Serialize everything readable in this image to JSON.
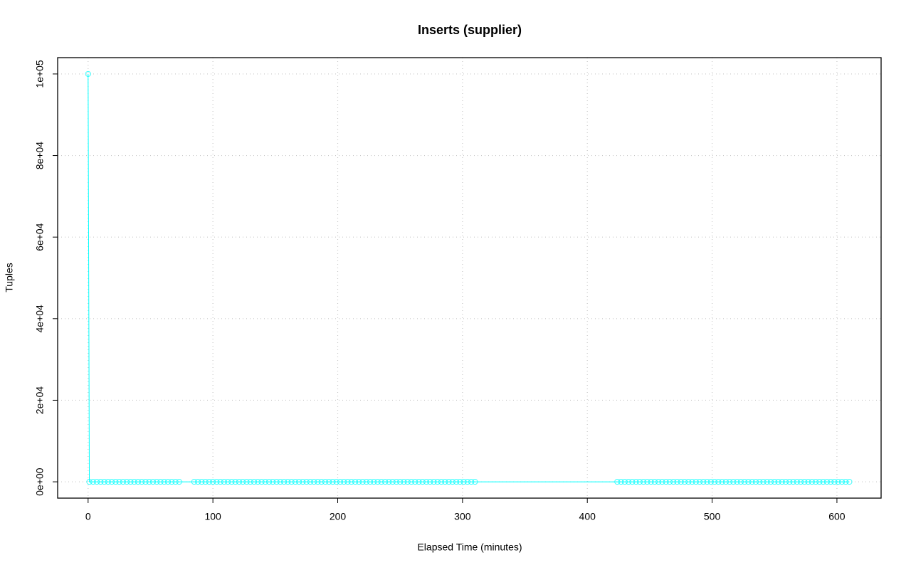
{
  "chart_data": {
    "type": "line",
    "title": "Inserts (supplier)",
    "x_label": "Elapsed Time (minutes)",
    "y_label": "Tuples",
    "xlim": [
      -24.4,
      635.4
    ],
    "ylim": [
      -4000,
      104000
    ],
    "xticks": [
      0,
      100,
      200,
      300,
      400,
      500,
      600
    ],
    "yticks": [
      {
        "value": 0,
        "label": "0e+00"
      },
      {
        "value": 20000,
        "label": "2e+04"
      },
      {
        "value": 40000,
        "label": "4e+04"
      },
      {
        "value": 60000,
        "label": "6e+04"
      },
      {
        "value": 80000,
        "label": "8e+04"
      },
      {
        "value": 100000,
        "label": "1e+05"
      }
    ],
    "grid": true,
    "series": [
      {
        "color": "#00ffff",
        "x": [
          0,
          1,
          4,
          7,
          10,
          13,
          16,
          19,
          22,
          25,
          28,
          31,
          34,
          37,
          40,
          43,
          46,
          49,
          52,
          55,
          58,
          61,
          64,
          67,
          70,
          73,
          85,
          88,
          91,
          94,
          97,
          100,
          103,
          106,
          109,
          112,
          115,
          118,
          121,
          124,
          127,
          130,
          133,
          136,
          139,
          142,
          145,
          148,
          151,
          154,
          157,
          160,
          163,
          166,
          169,
          172,
          175,
          178,
          181,
          184,
          187,
          190,
          193,
          196,
          199,
          202,
          205,
          208,
          211,
          214,
          217,
          220,
          223,
          226,
          229,
          232,
          235,
          238,
          241,
          244,
          247,
          250,
          253,
          256,
          259,
          262,
          265,
          268,
          271,
          274,
          277,
          280,
          283,
          286,
          289,
          292,
          295,
          298,
          301,
          304,
          307,
          310,
          424,
          427,
          430,
          433,
          436,
          439,
          442,
          445,
          448,
          451,
          454,
          457,
          460,
          463,
          466,
          469,
          472,
          475,
          478,
          481,
          484,
          487,
          490,
          493,
          496,
          499,
          502,
          505,
          508,
          511,
          514,
          517,
          520,
          523,
          526,
          529,
          532,
          535,
          538,
          541,
          544,
          547,
          550,
          553,
          556,
          559,
          562,
          565,
          568,
          571,
          574,
          577,
          580,
          583,
          586,
          589,
          592,
          595,
          598,
          601,
          604,
          607,
          610
        ],
        "values": [
          100000,
          0,
          0,
          0,
          0,
          0,
          0,
          0,
          0,
          0,
          0,
          0,
          0,
          0,
          0,
          0,
          0,
          0,
          0,
          0,
          0,
          0,
          0,
          0,
          0,
          0,
          0,
          0,
          0,
          0,
          0,
          0,
          0,
          0,
          0,
          0,
          0,
          0,
          0,
          0,
          0,
          0,
          0,
          0,
          0,
          0,
          0,
          0,
          0,
          0,
          0,
          0,
          0,
          0,
          0,
          0,
          0,
          0,
          0,
          0,
          0,
          0,
          0,
          0,
          0,
          0,
          0,
          0,
          0,
          0,
          0,
          0,
          0,
          0,
          0,
          0,
          0,
          0,
          0,
          0,
          0,
          0,
          0,
          0,
          0,
          0,
          0,
          0,
          0,
          0,
          0,
          0,
          0,
          0,
          0,
          0,
          0,
          0,
          0,
          0,
          0,
          0,
          0,
          0,
          0,
          0,
          0,
          0,
          0,
          0,
          0,
          0,
          0,
          0,
          0,
          0,
          0,
          0,
          0,
          0,
          0,
          0,
          0,
          0,
          0,
          0,
          0,
          0,
          0,
          0,
          0,
          0,
          0,
          0,
          0,
          0,
          0,
          0,
          0,
          0,
          0,
          0,
          0,
          0,
          0,
          0,
          0,
          0,
          0,
          0,
          0,
          0,
          0,
          0,
          0,
          0,
          0,
          0,
          0,
          0,
          0,
          0,
          0,
          0,
          0
        ]
      }
    ]
  }
}
